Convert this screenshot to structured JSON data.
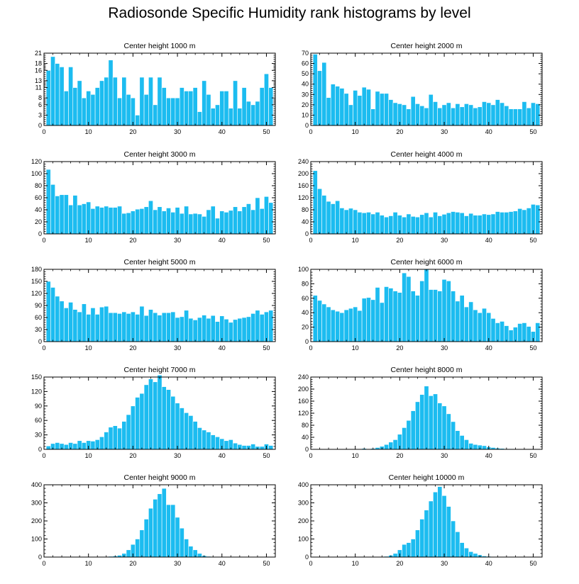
{
  "figure": {
    "title": "Radiosonde Specific Humidity rank histograms by level"
  },
  "chart_data": [
    {
      "type": "bar",
      "title": "Center height 1000 m",
      "x_range": [
        0,
        52
      ],
      "x_ticks": [
        0,
        10,
        20,
        30,
        40,
        50
      ],
      "ylim": [
        0,
        21
      ],
      "y_ticks": [
        0,
        3,
        6,
        8,
        11,
        13,
        16,
        18,
        21
      ],
      "values": [
        16,
        20,
        18,
        17,
        10,
        17,
        11,
        13,
        8,
        10,
        9,
        11,
        13,
        14,
        19,
        14,
        8,
        14,
        9,
        8,
        3,
        14,
        9,
        14,
        6,
        14,
        11,
        8,
        8,
        8,
        11,
        10,
        10,
        11,
        4,
        13,
        9,
        5,
        6,
        10,
        10,
        5,
        13,
        5,
        11,
        7,
        6,
        7,
        11,
        15,
        11
      ]
    },
    {
      "type": "bar",
      "title": "Center height 2000 m",
      "x_range": [
        0,
        52
      ],
      "x_ticks": [
        0,
        10,
        20,
        30,
        40,
        50
      ],
      "ylim": [
        0,
        70
      ],
      "y_ticks": [
        0,
        10,
        20,
        30,
        40,
        50,
        60,
        70
      ],
      "values": [
        69,
        53,
        61,
        27,
        40,
        38,
        36,
        31,
        20,
        34,
        29,
        37,
        35,
        16,
        33,
        31,
        31,
        25,
        22,
        21,
        20,
        16,
        28,
        21,
        19,
        17,
        30,
        23,
        17,
        20,
        22,
        17,
        21,
        18,
        21,
        20,
        17,
        18,
        23,
        22,
        20,
        25,
        22,
        19,
        16,
        16,
        16,
        23,
        17,
        22,
        21
      ]
    },
    {
      "type": "bar",
      "title": "Center height 3000 m",
      "x_range": [
        0,
        52
      ],
      "x_ticks": [
        0,
        10,
        20,
        30,
        40,
        50
      ],
      "ylim": [
        0,
        120
      ],
      "y_ticks": [
        0,
        20,
        40,
        60,
        80,
        100,
        120
      ],
      "values": [
        107,
        82,
        63,
        65,
        65,
        48,
        64,
        48,
        50,
        53,
        42,
        46,
        44,
        46,
        44,
        44,
        46,
        34,
        35,
        38,
        41,
        42,
        45,
        55,
        40,
        45,
        38,
        43,
        36,
        44,
        34,
        46,
        33,
        34,
        33,
        29,
        40,
        46,
        26,
        38,
        36,
        39,
        45,
        38,
        45,
        50,
        40,
        60,
        42,
        62,
        52
      ]
    },
    {
      "type": "bar",
      "title": "Center height 4000 m",
      "x_range": [
        0,
        52
      ],
      "x_ticks": [
        0,
        10,
        20,
        30,
        40,
        50
      ],
      "ylim": [
        0,
        240
      ],
      "y_ticks": [
        0,
        40,
        80,
        120,
        160,
        200,
        240
      ],
      "values": [
        210,
        150,
        128,
        108,
        100,
        110,
        86,
        80,
        85,
        80,
        72,
        70,
        72,
        66,
        72,
        62,
        56,
        60,
        72,
        62,
        56,
        66,
        58,
        56,
        64,
        70,
        56,
        72,
        60,
        65,
        70,
        74,
        72,
        70,
        60,
        68,
        62,
        62,
        66,
        64,
        66,
        74,
        72,
        72,
        74,
        76,
        84,
        80,
        86,
        98,
        96
      ]
    },
    {
      "type": "bar",
      "title": "Center height 5000 m",
      "x_range": [
        0,
        52
      ],
      "x_ticks": [
        0,
        10,
        20,
        30,
        40,
        50
      ],
      "ylim": [
        0,
        180
      ],
      "y_ticks": [
        0,
        30,
        60,
        90,
        120,
        150,
        180
      ],
      "values": [
        150,
        135,
        113,
        101,
        84,
        98,
        80,
        74,
        94,
        68,
        84,
        68,
        86,
        88,
        72,
        72,
        70,
        74,
        70,
        74,
        68,
        88,
        65,
        80,
        72,
        66,
        72,
        72,
        74,
        60,
        62,
        78,
        58,
        54,
        60,
        66,
        58,
        65,
        50,
        64,
        56,
        48,
        55,
        58,
        60,
        62,
        70,
        78,
        68,
        74,
        78
      ]
    },
    {
      "type": "bar",
      "title": "Center height 6000 m",
      "x_range": [
        0,
        52
      ],
      "x_ticks": [
        0,
        10,
        20,
        30,
        40,
        50
      ],
      "ylim": [
        0,
        100
      ],
      "y_ticks": [
        0,
        20,
        40,
        60,
        80,
        100
      ],
      "values": [
        64,
        57,
        52,
        48,
        44,
        42,
        40,
        44,
        46,
        48,
        43,
        60,
        61,
        58,
        75,
        54,
        76,
        74,
        70,
        68,
        95,
        90,
        70,
        64,
        84,
        100,
        72,
        72,
        70,
        86,
        84,
        70,
        56,
        64,
        48,
        55,
        44,
        40,
        46,
        40,
        32,
        26,
        28,
        22,
        16,
        20,
        25,
        26,
        21,
        14,
        26
      ]
    },
    {
      "type": "bar",
      "title": "Center height 7000 m",
      "x_range": [
        0,
        52
      ],
      "x_ticks": [
        0,
        10,
        20,
        30,
        40,
        50
      ],
      "ylim": [
        0,
        150
      ],
      "y_ticks": [
        0,
        30,
        60,
        90,
        120,
        150
      ],
      "values": [
        7,
        12,
        14,
        12,
        10,
        14,
        12,
        18,
        14,
        18,
        17,
        20,
        26,
        36,
        46,
        49,
        44,
        58,
        72,
        90,
        108,
        116,
        134,
        146,
        140,
        154,
        130,
        124,
        110,
        96,
        86,
        76,
        70,
        58,
        45,
        40,
        36,
        30,
        26,
        22,
        18,
        20,
        13,
        10,
        8,
        8,
        11,
        6,
        6,
        11,
        8
      ]
    },
    {
      "type": "bar",
      "title": "Center height 8000 m",
      "x_range": [
        0,
        52
      ],
      "x_ticks": [
        0,
        10,
        20,
        30,
        40,
        50
      ],
      "ylim": [
        0,
        240
      ],
      "y_ticks": [
        0,
        40,
        80,
        120,
        160,
        200,
        240
      ],
      "values": [
        0,
        0,
        0,
        0,
        0,
        0,
        0,
        0,
        0,
        0,
        0,
        3,
        1,
        3,
        6,
        10,
        16,
        24,
        32,
        50,
        72,
        96,
        128,
        158,
        182,
        210,
        178,
        184,
        154,
        144,
        118,
        92,
        62,
        46,
        32,
        20,
        16,
        14,
        12,
        8,
        6,
        4,
        3,
        2,
        2,
        1,
        1,
        1,
        0,
        0,
        0
      ]
    },
    {
      "type": "bar",
      "title": "Center height 9000 m",
      "x_range": [
        0,
        52
      ],
      "x_ticks": [
        0,
        10,
        20,
        30,
        40,
        50
      ],
      "ylim": [
        0,
        400
      ],
      "y_ticks": [
        0,
        100,
        200,
        300,
        400
      ],
      "values": [
        0,
        0,
        0,
        0,
        0,
        0,
        0,
        0,
        0,
        0,
        0,
        0,
        0,
        2,
        4,
        6,
        10,
        20,
        40,
        70,
        100,
        150,
        210,
        270,
        320,
        350,
        380,
        290,
        290,
        220,
        160,
        100,
        60,
        40,
        20,
        8,
        4,
        2,
        2,
        0,
        0,
        0,
        0,
        0,
        0,
        0,
        0,
        0,
        0,
        0,
        0
      ]
    },
    {
      "type": "bar",
      "title": "Center height 10000 m",
      "x_range": [
        0,
        52
      ],
      "x_ticks": [
        0,
        10,
        20,
        30,
        40,
        50
      ],
      "ylim": [
        0,
        400
      ],
      "y_ticks": [
        0,
        100,
        200,
        300,
        400
      ],
      "values": [
        0,
        0,
        0,
        0,
        0,
        0,
        0,
        0,
        0,
        0,
        0,
        0,
        0,
        0,
        0,
        2,
        4,
        10,
        20,
        40,
        70,
        80,
        100,
        150,
        210,
        260,
        310,
        360,
        390,
        340,
        280,
        200,
        140,
        80,
        50,
        30,
        20,
        12,
        6,
        4,
        2,
        0,
        0,
        0,
        0,
        0,
        0,
        0,
        0,
        0,
        0
      ]
    }
  ]
}
